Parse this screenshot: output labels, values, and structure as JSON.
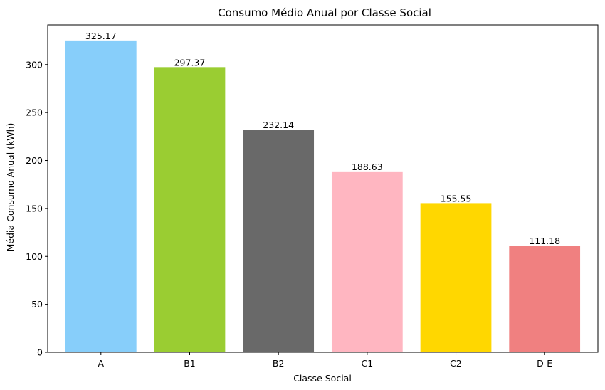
{
  "chart_data": {
    "type": "bar",
    "title": "Consumo Médio Anual por Classe Social",
    "xlabel": "Classe Social",
    "ylabel": "Média Consumo Anual (kWh)",
    "categories": [
      "A",
      "B1",
      "B2",
      "C1",
      "C2",
      "D-E"
    ],
    "values": [
      325.17,
      297.37,
      232.14,
      188.63,
      155.55,
      111.18
    ],
    "value_labels": [
      "325.17",
      "297.37",
      "232.14",
      "188.63",
      "155.55",
      "111.18"
    ],
    "colors": [
      "#87CEFA",
      "#9ACD32",
      "#696969",
      "#FFB6C1",
      "#FFD700",
      "#F08080"
    ],
    "ylim": [
      0,
      341.4
    ],
    "yticks": [
      0,
      50,
      100,
      150,
      200,
      250,
      300
    ],
    "ytick_labels": [
      "0",
      "50",
      "100",
      "150",
      "200",
      "250",
      "300"
    ],
    "grid": false,
    "legend": false
  }
}
